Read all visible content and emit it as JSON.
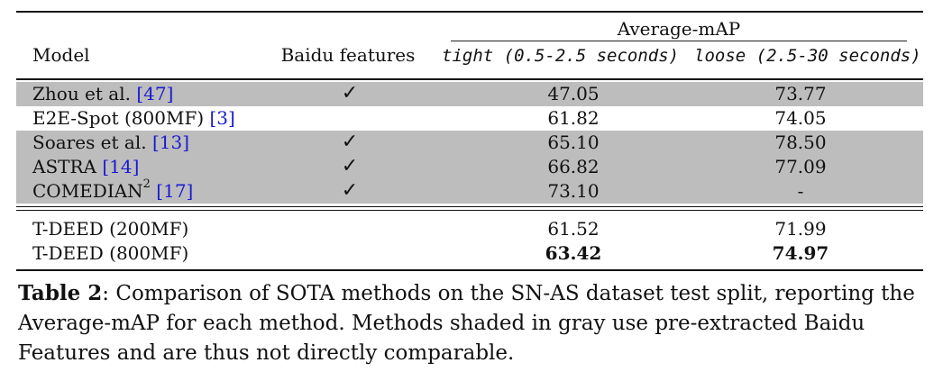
{
  "header": {
    "group_label": "Average-mAP",
    "model": "Model",
    "baidu": "Baidu features",
    "tight": "tight (0.5-2.5 seconds)",
    "loose": "loose (2.5-30 seconds)"
  },
  "rows": [
    {
      "name": "Zhou et al. ",
      "ref": "[47]",
      "sup": "",
      "baidu": "✓",
      "tight": "47.05",
      "loose": "73.77",
      "shaded": true
    },
    {
      "name": "E2E-Spot (800MF) ",
      "ref": "[3]",
      "sup": "",
      "baidu": "",
      "tight": "61.82",
      "loose": "74.05",
      "shaded": false
    },
    {
      "name": "Soares et al. ",
      "ref": "[13]",
      "sup": "",
      "baidu": "✓",
      "tight": "65.10",
      "loose": "78.50",
      "shaded": true
    },
    {
      "name": "ASTRA ",
      "ref": "[14]",
      "sup": "",
      "baidu": "✓",
      "tight": "66.82",
      "loose": "77.09",
      "shaded": true
    },
    {
      "name": "COMEDIAN",
      "ref": "[17]",
      "sup": "2",
      "baidu": "✓",
      "tight": "73.10",
      "loose": "-",
      "shaded": true
    }
  ],
  "ours": [
    {
      "name": "T-DEED (200MF)",
      "tight": "61.52",
      "loose": "71.99"
    },
    {
      "name": "T-DEED (800MF)",
      "tight": "63.42",
      "loose": "74.97"
    }
  ],
  "caption": {
    "label": "Table 2",
    "text": ": Comparison of SOTA methods on the SN-AS dataset test split, reporting the Average-mAP for each method. Methods shaded in gray use pre-extracted Baidu Features and are thus not directly comparable."
  }
}
